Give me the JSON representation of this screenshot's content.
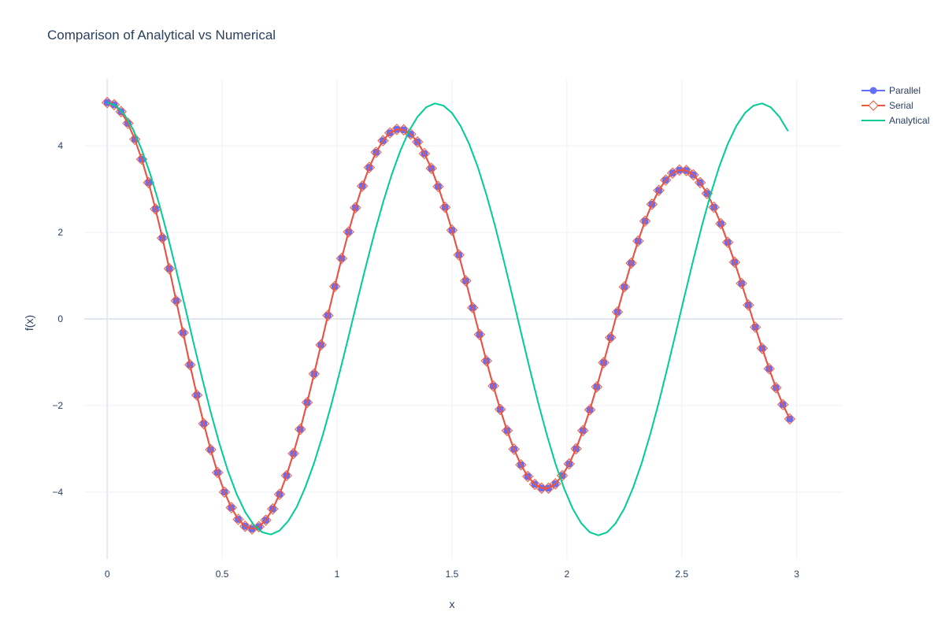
{
  "chart_data": {
    "type": "line",
    "title": "Comparison of Analytical vs Numerical",
    "xlabel": "x",
    "ylabel": "f(x)",
    "xlim": [
      -0.1,
      3.2
    ],
    "ylim": [
      -5.55,
      5.55
    ],
    "x_ticks": [
      0,
      0.5,
      1,
      1.5,
      2,
      2.5,
      3
    ],
    "x_tick_labels": [
      "0",
      "0.5",
      "1",
      "1.5",
      "2",
      "2.5",
      "3"
    ],
    "y_ticks": [
      -4,
      -2,
      0,
      2,
      4
    ],
    "y_tick_labels": [
      "−4",
      "−2",
      "0",
      "2",
      "4"
    ],
    "grid": true,
    "legend_position": "top-right",
    "series": [
      {
        "name": "Parallel",
        "mode": "lines+markers",
        "marker": "circle",
        "color": "#636efa",
        "x": [
          0,
          0.03,
          0.06,
          0.09,
          0.12,
          0.15,
          0.18,
          0.21,
          0.24,
          0.27,
          0.3,
          0.33,
          0.36,
          0.39,
          0.42,
          0.45,
          0.48,
          0.51,
          0.54,
          0.57,
          0.6,
          0.63,
          0.66,
          0.69,
          0.72,
          0.75,
          0.78,
          0.81,
          0.84,
          0.87,
          0.9,
          0.93,
          0.96,
          0.99,
          1.02,
          1.05,
          1.08,
          1.11,
          1.14,
          1.17,
          1.2,
          1.23,
          1.26,
          1.29,
          1.32,
          1.35,
          1.38,
          1.41,
          1.44,
          1.47,
          1.5,
          1.53,
          1.56,
          1.59,
          1.62,
          1.65,
          1.68,
          1.71,
          1.74,
          1.77,
          1.8,
          1.83,
          1.86,
          1.89,
          1.92,
          1.95,
          1.98,
          2.01,
          2.04,
          2.07,
          2.1,
          2.13,
          2.16,
          2.19,
          2.22,
          2.25,
          2.28,
          2.31,
          2.34,
          2.37,
          2.4,
          2.43,
          2.46,
          2.49,
          2.52,
          2.55,
          2.58,
          2.61,
          2.64,
          2.67,
          2.7,
          2.73,
          2.76,
          2.79,
          2.82,
          2.85,
          2.88,
          2.91,
          2.94,
          2.97
        ],
        "y": [
          5.0,
          4.95,
          4.79,
          4.52,
          4.15,
          3.69,
          3.15,
          2.54,
          1.87,
          1.16,
          0.42,
          -0.32,
          -1.06,
          -1.76,
          -2.42,
          -3.02,
          -3.55,
          -4.0,
          -4.36,
          -4.63,
          -4.79,
          -4.85,
          -4.8,
          -4.65,
          -4.39,
          -4.05,
          -3.62,
          -3.11,
          -2.55,
          -1.93,
          -1.27,
          -0.6,
          0.08,
          0.75,
          1.4,
          2.01,
          2.57,
          3.07,
          3.5,
          3.85,
          4.12,
          4.3,
          4.38,
          4.37,
          4.27,
          4.09,
          3.82,
          3.48,
          3.06,
          2.58,
          2.05,
          1.48,
          0.88,
          0.26,
          -0.36,
          -0.97,
          -1.55,
          -2.09,
          -2.58,
          -3.01,
          -3.37,
          -3.64,
          -3.82,
          -3.91,
          -3.91,
          -3.81,
          -3.62,
          -3.35,
          -3.0,
          -2.58,
          -2.1,
          -1.57,
          -1.01,
          -0.43,
          0.16,
          0.74,
          1.29,
          1.8,
          2.26,
          2.65,
          2.97,
          3.21,
          3.37,
          3.44,
          3.43,
          3.33,
          3.15,
          2.9,
          2.58,
          2.2,
          1.77,
          1.31,
          0.82,
          0.32,
          -0.19,
          -0.68,
          -1.15,
          -1.59,
          -1.98,
          -2.31
        ]
      },
      {
        "name": "Serial",
        "mode": "lines+markers",
        "marker": "diamond-open",
        "color": "#ef553b",
        "x": [
          0,
          0.03,
          0.06,
          0.09,
          0.12,
          0.15,
          0.18,
          0.21,
          0.24,
          0.27,
          0.3,
          0.33,
          0.36,
          0.39,
          0.42,
          0.45,
          0.48,
          0.51,
          0.54,
          0.57,
          0.6,
          0.63,
          0.66,
          0.69,
          0.72,
          0.75,
          0.78,
          0.81,
          0.84,
          0.87,
          0.9,
          0.93,
          0.96,
          0.99,
          1.02,
          1.05,
          1.08,
          1.11,
          1.14,
          1.17,
          1.2,
          1.23,
          1.26,
          1.29,
          1.32,
          1.35,
          1.38,
          1.41,
          1.44,
          1.47,
          1.5,
          1.53,
          1.56,
          1.59,
          1.62,
          1.65,
          1.68,
          1.71,
          1.74,
          1.77,
          1.8,
          1.83,
          1.86,
          1.89,
          1.92,
          1.95,
          1.98,
          2.01,
          2.04,
          2.07,
          2.1,
          2.13,
          2.16,
          2.19,
          2.22,
          2.25,
          2.28,
          2.31,
          2.34,
          2.37,
          2.4,
          2.43,
          2.46,
          2.49,
          2.52,
          2.55,
          2.58,
          2.61,
          2.64,
          2.67,
          2.7,
          2.73,
          2.76,
          2.79,
          2.82,
          2.85,
          2.88,
          2.91,
          2.94,
          2.97
        ],
        "y": [
          5.0,
          4.95,
          4.79,
          4.52,
          4.15,
          3.69,
          3.15,
          2.54,
          1.87,
          1.16,
          0.42,
          -0.32,
          -1.06,
          -1.76,
          -2.42,
          -3.02,
          -3.55,
          -4.0,
          -4.36,
          -4.63,
          -4.79,
          -4.85,
          -4.8,
          -4.65,
          -4.39,
          -4.05,
          -3.62,
          -3.11,
          -2.55,
          -1.93,
          -1.27,
          -0.6,
          0.08,
          0.75,
          1.4,
          2.01,
          2.57,
          3.07,
          3.5,
          3.85,
          4.12,
          4.3,
          4.38,
          4.37,
          4.27,
          4.09,
          3.82,
          3.48,
          3.06,
          2.58,
          2.05,
          1.48,
          0.88,
          0.26,
          -0.36,
          -0.97,
          -1.55,
          -2.09,
          -2.58,
          -3.01,
          -3.37,
          -3.64,
          -3.82,
          -3.91,
          -3.91,
          -3.81,
          -3.62,
          -3.35,
          -3.0,
          -2.58,
          -2.1,
          -1.57,
          -1.01,
          -0.43,
          0.16,
          0.74,
          1.29,
          1.8,
          2.26,
          2.65,
          2.97,
          3.21,
          3.37,
          3.44,
          3.43,
          3.33,
          3.15,
          2.9,
          2.58,
          2.2,
          1.77,
          1.31,
          0.82,
          0.32,
          -0.19,
          -0.68,
          -1.15,
          -1.59,
          -1.98,
          -2.31
        ]
      },
      {
        "name": "Analytical",
        "mode": "lines",
        "color": "#00cc96",
        "x": [
          0,
          0.0375,
          0.075,
          0.1125,
          0.15,
          0.1875,
          0.225,
          0.2625,
          0.3,
          0.3375,
          0.375,
          0.4125,
          0.45,
          0.4875,
          0.525,
          0.5625,
          0.6,
          0.6375,
          0.675,
          0.7125,
          0.75,
          0.7875,
          0.825,
          0.8625,
          0.9,
          0.9375,
          0.975,
          1.0125,
          1.05,
          1.0875,
          1.125,
          1.1625,
          1.2,
          1.2375,
          1.275,
          1.3125,
          1.35,
          1.3875,
          1.425,
          1.4625,
          1.5,
          1.5375,
          1.575,
          1.6125,
          1.65,
          1.6875,
          1.725,
          1.7625,
          1.8,
          1.8375,
          1.875,
          1.9125,
          1.95,
          1.9875,
          2.025,
          2.0625,
          2.1,
          2.1375,
          2.175,
          2.2125,
          2.25,
          2.2875,
          2.325,
          2.3625,
          2.4,
          2.4375,
          2.475,
          2.5125,
          2.55,
          2.5875,
          2.625,
          2.6625,
          2.7,
          2.7375,
          2.775,
          2.8125,
          2.85,
          2.8875,
          2.925,
          2.9625
        ],
        "y": [
          5.0,
          4.93,
          4.72,
          4.38,
          3.91,
          3.34,
          2.67,
          1.93,
          1.13,
          0.3,
          -0.54,
          -1.36,
          -2.15,
          -2.87,
          -3.51,
          -4.04,
          -4.46,
          -4.76,
          -4.93,
          -4.98,
          -4.89,
          -4.67,
          -4.34,
          -3.88,
          -3.33,
          -2.69,
          -1.98,
          -1.21,
          -0.41,
          0.41,
          1.21,
          1.98,
          2.69,
          3.33,
          3.88,
          4.34,
          4.67,
          4.89,
          4.98,
          4.93,
          4.76,
          4.46,
          4.04,
          3.51,
          2.87,
          2.15,
          1.36,
          0.54,
          -0.3,
          -1.13,
          -1.93,
          -2.67,
          -3.34,
          -3.91,
          -4.38,
          -4.72,
          -4.93,
          -5.0,
          -4.93,
          -4.72,
          -4.38,
          -3.91,
          -3.34,
          -2.67,
          -1.93,
          -1.13,
          -0.3,
          0.54,
          1.36,
          2.15,
          2.87,
          3.51,
          4.04,
          4.46,
          4.76,
          4.93,
          4.98,
          4.89,
          4.67,
          4.34
        ]
      }
    ]
  }
}
